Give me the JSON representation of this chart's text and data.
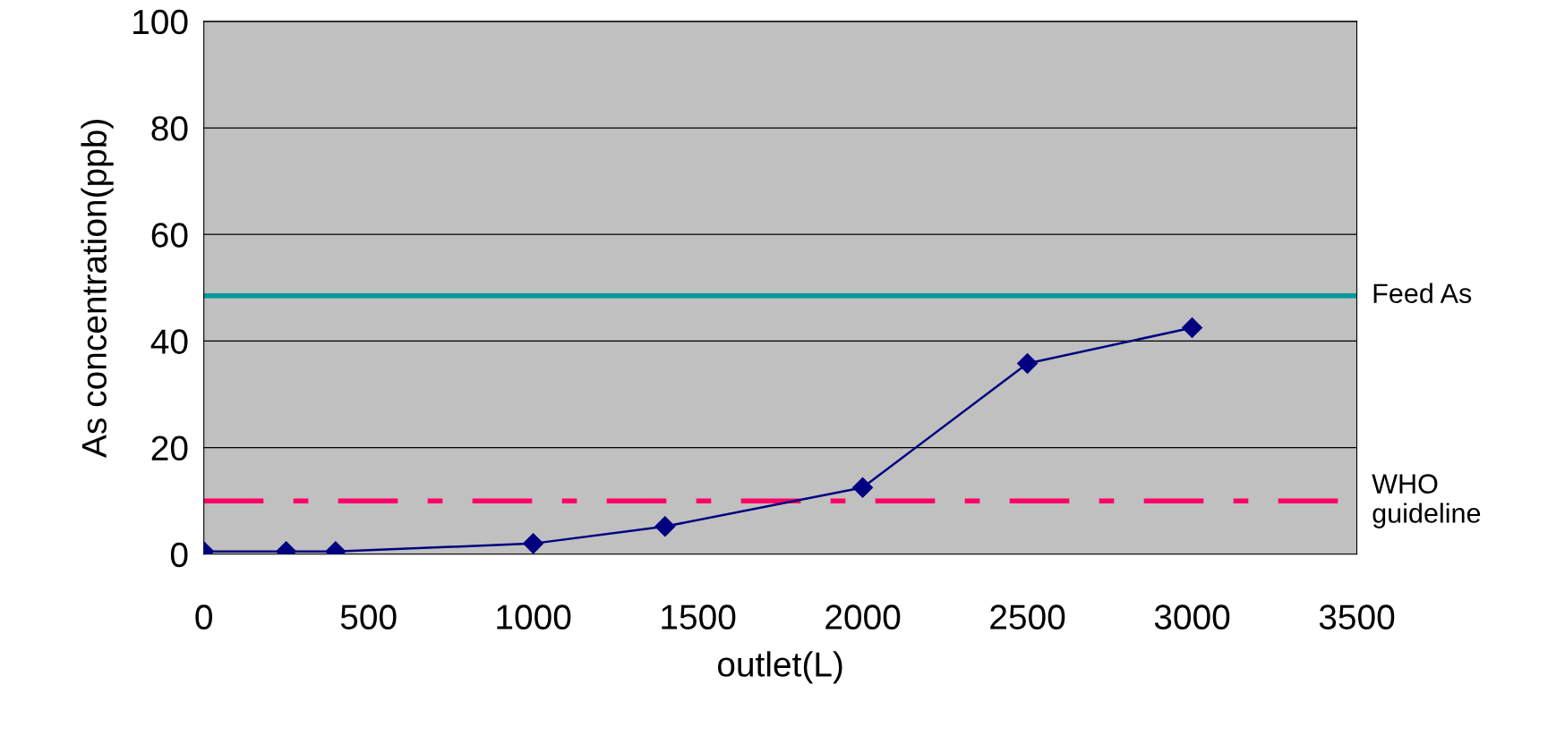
{
  "chart_data": {
    "type": "line",
    "xlabel": "outlet(L)",
    "ylabel": "As concentration(ppb)",
    "x": [
      0,
      250,
      400,
      1000,
      1400,
      2000,
      2500,
      3000
    ],
    "series": [
      {
        "color": "#000080",
        "values": [
          0.5,
          0.5,
          0.5,
          2,
          5.2,
          12.5,
          35.8,
          42.5
        ]
      }
    ],
    "xlim": [
      0,
      3500
    ],
    "xticks": [
      0,
      500,
      1000,
      1500,
      2000,
      2500,
      3000,
      3500
    ],
    "ylim": [
      0,
      100
    ],
    "yticks": [
      0,
      20,
      40,
      60,
      80,
      100
    ],
    "grid": "y",
    "marker": "diamond",
    "line_style": "solid",
    "ref_lines": [
      {
        "axis": "y",
        "value": 48.5,
        "label": "Feed As",
        "color": "#009999",
        "line_style": "solid"
      },
      {
        "axis": "y",
        "value": 10,
        "label": "WHO\nguideline",
        "color": "#ff0066",
        "line_style": "dashdot"
      }
    ]
  }
}
